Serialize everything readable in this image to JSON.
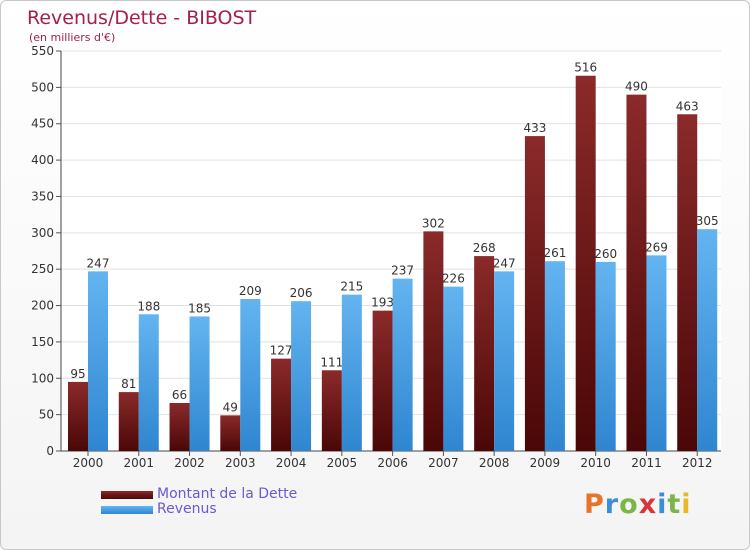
{
  "header": {
    "title": "Revenus/Dette - BIBOST",
    "subtitle": "(en milliers d'€)"
  },
  "legend": {
    "dette_label": "Montant de la Dette",
    "revenus_label": "Revenus"
  },
  "logo": {
    "letters": [
      "P",
      "r",
      "o",
      "x",
      "i",
      "t",
      "i"
    ],
    "colors": [
      "#e8742a",
      "#3a8fd8",
      "#7ab648",
      "#d8343a",
      "#3a8fd8",
      "#7ab648",
      "#e8b82a"
    ]
  },
  "colors": {
    "dette_top": "#8b2a2a",
    "dette_bottom": "#4a0707",
    "revenus_top": "#63b4f0",
    "revenus_bottom": "#2f86d0",
    "title": "#a4204a"
  },
  "chart_data": {
    "type": "bar",
    "title": "Revenus/Dette - BIBOST",
    "ylabel": "(en milliers d'€)",
    "xlabel": "",
    "ylim": [
      0,
      550
    ],
    "yticks": [
      0,
      50,
      100,
      150,
      200,
      250,
      300,
      350,
      400,
      450,
      500,
      550
    ],
    "grid": true,
    "legend_position": "bottom-left",
    "categories": [
      "2000",
      "2001",
      "2002",
      "2003",
      "2004",
      "2005",
      "2006",
      "2007",
      "2008",
      "2009",
      "2010",
      "2011",
      "2012"
    ],
    "series": [
      {
        "name": "Montant de la Dette",
        "values": [
          95,
          81,
          66,
          49,
          127,
          111,
          193,
          302,
          268,
          433,
          516,
          490,
          463
        ]
      },
      {
        "name": "Revenus",
        "values": [
          247,
          188,
          185,
          209,
          206,
          215,
          237,
          226,
          247,
          261,
          260,
          269,
          305
        ]
      }
    ]
  }
}
